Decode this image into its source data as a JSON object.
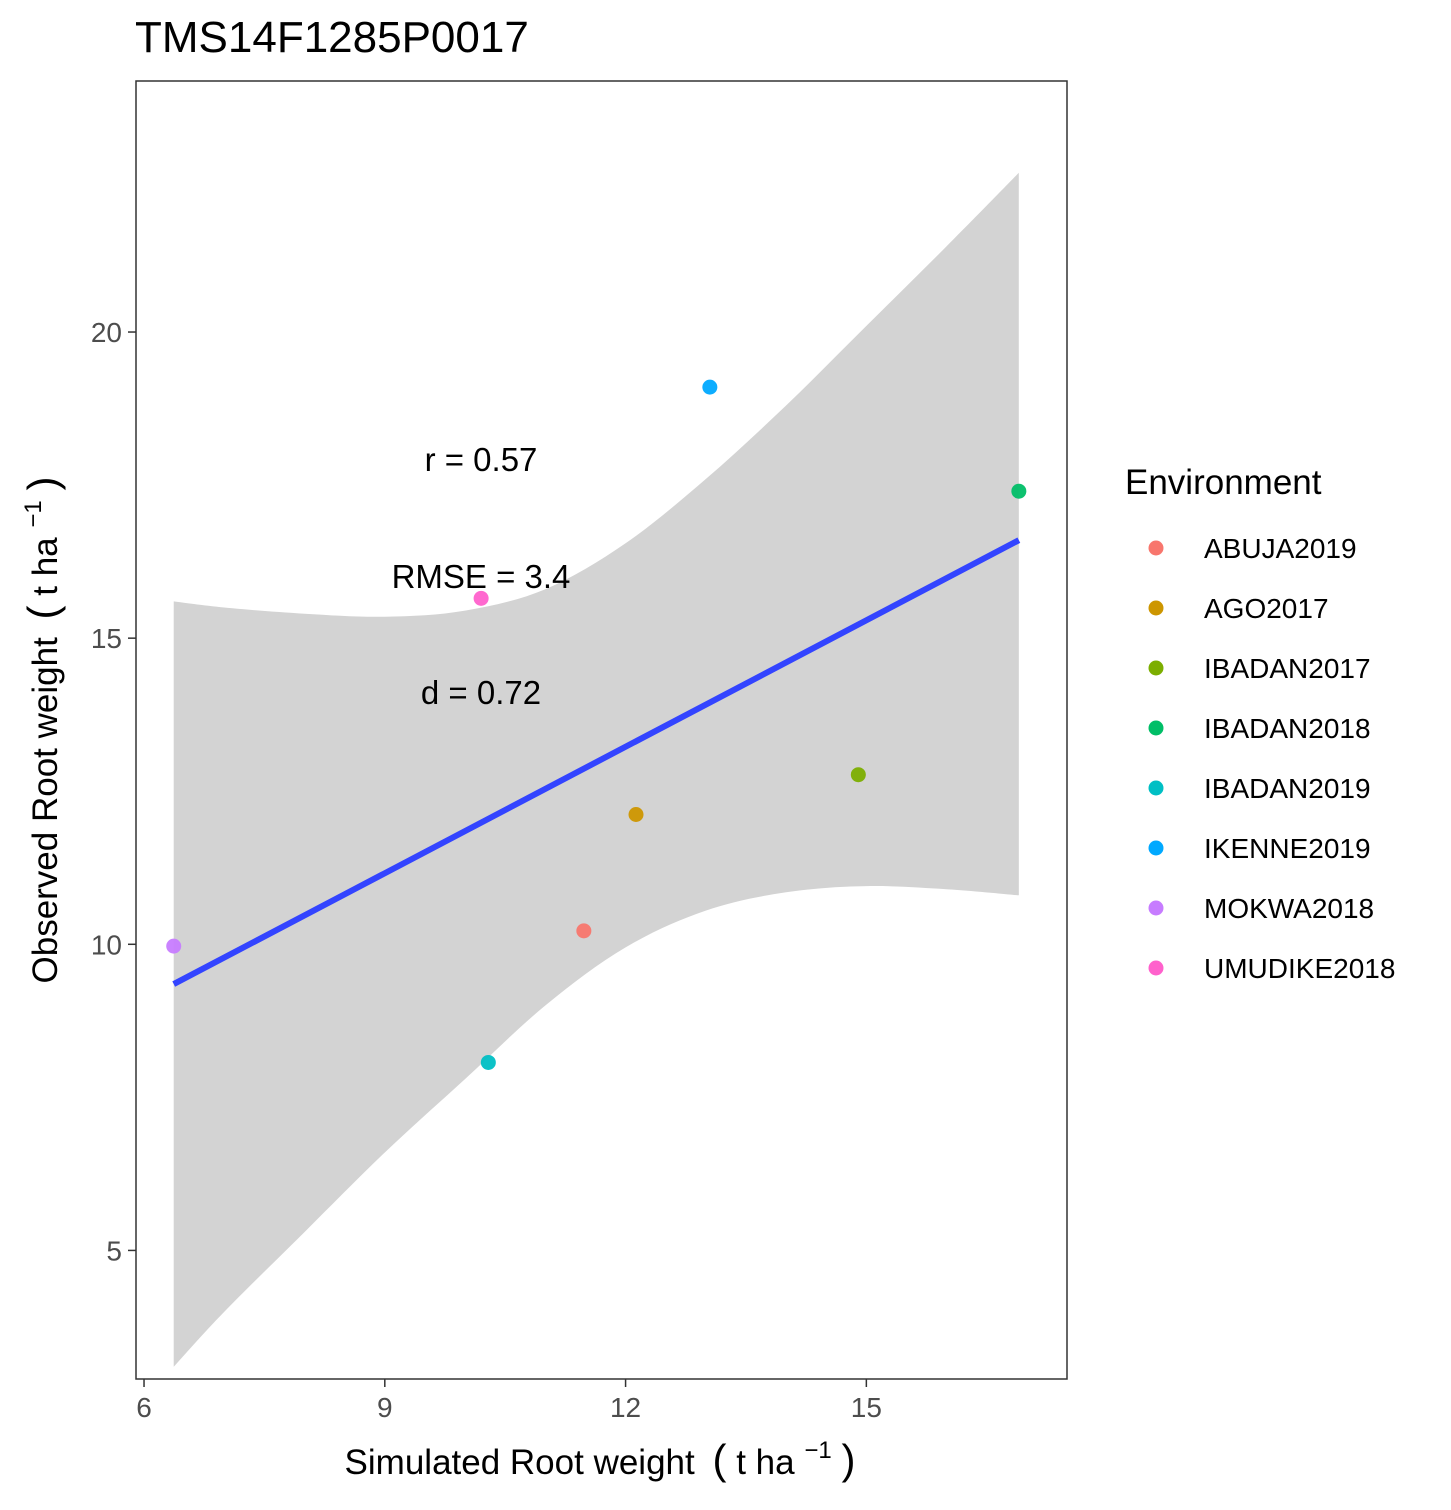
{
  "chart_data": {
    "type": "scatter",
    "title": "TMS14F1285P0017",
    "xlabel": {
      "main": "Simulated Root weight",
      "unit_open": "(",
      "unit_text": "t ha",
      "unit_sup": "−1",
      "unit_close": ")"
    },
    "ylabel": {
      "main": "Observed Root weight",
      "unit_open": "(",
      "unit_text": "t ha",
      "unit_sup": "−1",
      "unit_close": ")"
    },
    "xlim": [
      5.9,
      17.5
    ],
    "ylim": [
      2.9,
      24.1
    ],
    "xticks": [
      6,
      9,
      12,
      15
    ],
    "yticks": [
      5,
      10,
      15,
      20
    ],
    "grid": false,
    "legend": {
      "title": "Environment",
      "placement": "right"
    },
    "series": [
      {
        "name": "ABUJA2019",
        "color": "#F8766D",
        "x": 11.48,
        "y": 10.22
      },
      {
        "name": "AGO2017",
        "color": "#CD9600",
        "x": 12.13,
        "y": 12.12
      },
      {
        "name": "IBADAN2017",
        "color": "#7CAE00",
        "x": 14.9,
        "y": 12.77
      },
      {
        "name": "IBADAN2018",
        "color": "#00BE67",
        "x": 16.9,
        "y": 17.4
      },
      {
        "name": "IBADAN2019",
        "color": "#00BFC4",
        "x": 10.29,
        "y": 8.07
      },
      {
        "name": "IKENNE2019",
        "color": "#00A9FF",
        "x": 13.05,
        "y": 19.1
      },
      {
        "name": "MOKWA2018",
        "color": "#C77CFF",
        "x": 6.37,
        "y": 9.97
      },
      {
        "name": "UMUDIKE2018",
        "color": "#FF61CC",
        "x": 10.2,
        "y": 15.65
      }
    ],
    "fit_line": {
      "color": "#3344FF",
      "x": [
        6.37,
        16.9
      ],
      "y": [
        9.35,
        16.6
      ]
    },
    "confidence_band": {
      "color": "#D3D3D3",
      "x": [
        6.37,
        7.0,
        8.0,
        9.0,
        10.0,
        11.0,
        12.0,
        13.0,
        14.0,
        15.0,
        16.0,
        16.9
      ],
      "lower": [
        3.1,
        4.0,
        5.3,
        6.6,
        7.8,
        9.0,
        9.95,
        10.55,
        10.85,
        10.95,
        10.9,
        10.8
      ],
      "upper": [
        15.6,
        15.5,
        15.4,
        15.35,
        15.45,
        15.8,
        16.55,
        17.6,
        18.8,
        20.1,
        21.4,
        22.6
      ]
    },
    "annotations": [
      "r = 0.57",
      "RMSE = 3.4",
      "d = 0.72"
    ]
  }
}
